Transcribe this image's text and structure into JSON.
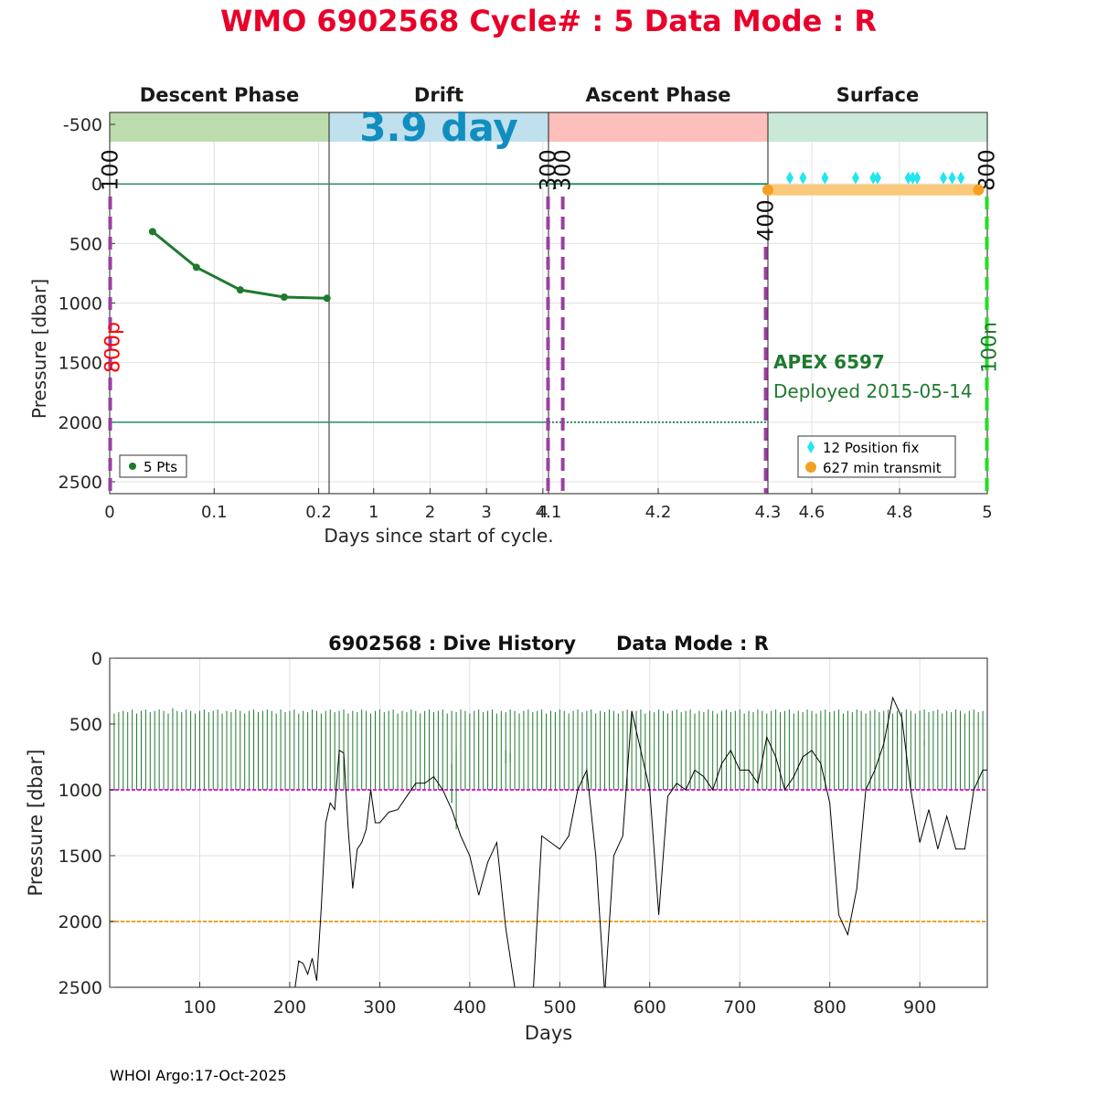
{
  "header": {
    "title": "WMO 6902568   Cycle# : 5   Data Mode : R",
    "title_color": "#e8002a",
    "footer": "WHOI Argo:17-Oct-2025"
  },
  "chart_data": [
    {
      "type": "line",
      "title": "",
      "ylabel": "Pressure [dbar]",
      "xlabel": "Days since start of cycle.",
      "ylim": [
        2600,
        -600
      ],
      "yticks": [
        2500,
        2000,
        1500,
        1000,
        500,
        0,
        -500
      ],
      "ytick_labels": [
        "2500",
        "2000",
        "1500",
        "1000",
        "500",
        "0",
        "-500"
      ],
      "grid": true,
      "phases": [
        {
          "name": "Descent Phase",
          "color": "#bddcae",
          "xlim": [
            0,
            0.21
          ],
          "xticks": [
            0,
            0.1,
            0.2
          ],
          "xtick_labels": [
            "0",
            "0.1",
            "0.2"
          ]
        },
        {
          "name": "Drift",
          "color": "#bfe0ec",
          "duration_label": "3.9 day",
          "xlim": [
            0.21,
            4.1
          ],
          "xticks": [
            1,
            2,
            3,
            4
          ],
          "xtick_labels": [
            "1",
            "2",
            "3",
            "4"
          ]
        },
        {
          "name": "Ascent Phase",
          "color": "#fcbfbb",
          "xlim": [
            4.1,
            4.3
          ],
          "xticks": [
            4.1,
            4.2,
            4.3
          ],
          "xtick_labels": [
            "4.1",
            "4.2",
            "4.3"
          ]
        },
        {
          "name": "Surface",
          "color": "#c9e8d8",
          "xlim": [
            4.5,
            5.0
          ],
          "xticks": [
            4.6,
            4.8,
            5.0
          ],
          "xtick_labels": [
            "4.6",
            "4.8",
            "5"
          ]
        }
      ],
      "phase_duration_color": "#118ec0",
      "reference_lines": [
        {
          "y": 0,
          "color": "#2e8b6e"
        },
        {
          "y": 2000,
          "color": "#2e8b6e"
        }
      ],
      "descent_profile": {
        "legend": "5 Pts",
        "color": "#1f7a2e",
        "x": [
          0.041,
          0.083,
          0.125,
          0.167,
          0.208
        ],
        "y": [
          400,
          700,
          890,
          950,
          960
        ]
      },
      "vertical_markers": [
        {
          "phase": 0,
          "x": 0.0,
          "label": "100",
          "color": "#9a3fa0"
        },
        {
          "phase": 0,
          "x": 0.0,
          "label": "800p",
          "color": "#ff0000",
          "side_label": true
        },
        {
          "phase": 1,
          "x": 4.1,
          "label": "300",
          "color": "#9a3fa0"
        },
        {
          "phase": 2,
          "x": 4.113,
          "label": "300",
          "color": "#9a3fa0"
        },
        {
          "phase": 2,
          "x": 4.298,
          "label": "400",
          "color": "#9a3fa0"
        },
        {
          "phase": 3,
          "x": 5.0,
          "label": "800",
          "color": "#22dd22"
        },
        {
          "phase": 3,
          "x": 5.0,
          "label": "100n",
          "color": "#1f7a2e",
          "side_label": true
        }
      ],
      "surface": {
        "float_name": "APEX 6597",
        "deployed": "Deployed 2015-05-14",
        "label_color": "#1f7a2e",
        "transmit_band": {
          "x_start": 4.5,
          "x_end": 4.98,
          "y": 50,
          "color": "#fbc97a"
        },
        "position_fixes": {
          "legend": "12 Position fix",
          "color": "#22e5f0",
          "x": [
            4.55,
            4.58,
            4.63,
            4.7,
            4.74,
            4.75,
            4.82,
            4.83,
            4.84,
            4.9,
            4.92,
            4.94
          ],
          "y": -50
        },
        "transmit": {
          "legend": "627 min transmit",
          "color": "#f5a020",
          "x": [
            4.5,
            4.98
          ],
          "y": 50
        }
      }
    },
    {
      "type": "line",
      "title": "6902568 : Dive History      Data Mode : R",
      "xlabel": "Days",
      "ylabel": "Pressure [dbar]",
      "xlim": [
        0,
        975
      ],
      "ylim": [
        2500,
        0
      ],
      "xticks": [
        100,
        200,
        300,
        400,
        500,
        600,
        700,
        800,
        900
      ],
      "xtick_labels": [
        "100",
        "200",
        "300",
        "400",
        "500",
        "600",
        "700",
        "800",
        "900"
      ],
      "yticks": [
        0,
        500,
        1000,
        1500,
        2000,
        2500
      ],
      "ytick_labels": [
        "0",
        "500",
        "1000",
        "1500",
        "2000",
        "2500"
      ],
      "grid": true,
      "reference_lines": [
        {
          "y": 1000,
          "color": "#e020e0",
          "style": "dashed"
        },
        {
          "y": 2000,
          "color": "#f5a020",
          "style": "dashed"
        }
      ],
      "series": [
        {
          "kind": "profile_range_bars",
          "color": "#1f7a2e",
          "step": 5,
          "top": [
            420,
            410,
            400,
            410,
            390,
            420,
            400,
            390,
            410,
            400,
            390,
            400,
            420,
            380,
            400,
            410,
            390,
            400,
            420,
            400,
            390,
            410,
            400,
            390,
            420,
            400,
            410,
            390,
            400,
            420,
            400,
            390,
            410,
            400,
            390,
            400,
            420,
            390,
            410,
            400,
            390,
            420,
            400,
            410,
            390,
            400,
            420,
            400,
            390,
            410,
            400,
            390,
            420,
            400,
            410,
            390,
            400,
            420,
            400,
            390,
            410,
            400,
            390,
            420,
            400,
            410,
            390,
            400,
            420,
            400,
            390,
            410,
            400,
            390,
            420,
            400,
            410,
            390,
            400,
            420,
            400,
            390,
            410,
            400,
            390,
            420,
            400,
            410,
            390,
            400,
            420,
            400,
            390,
            410,
            400,
            390,
            420,
            400,
            410,
            390,
            400,
            420,
            400,
            390,
            410,
            400,
            390,
            420,
            400,
            410,
            390,
            400,
            420,
            400,
            390,
            410,
            400,
            390,
            420,
            400,
            410,
            390,
            400,
            420,
            400,
            390,
            410,
            400,
            390,
            420,
            400,
            410,
            390,
            400,
            420,
            400,
            390,
            410,
            400,
            390,
            420,
            400,
            410,
            390,
            400,
            420,
            400,
            390,
            410,
            400,
            390,
            420,
            400,
            410,
            390,
            400,
            420,
            400,
            390,
            410,
            400,
            390,
            420,
            400,
            410,
            390,
            400,
            420,
            400,
            390,
            410,
            400,
            390,
            420,
            400,
            410,
            390,
            400,
            420,
            400,
            390,
            410,
            400,
            390,
            420,
            400,
            410,
            390,
            400,
            420,
            400,
            390,
            410,
            400,
            390,
            420,
            400,
            410,
            390,
            400,
            420,
            400,
            390
          ],
          "bottom": [
            1000,
            1000,
            1000,
            1000,
            1000,
            1000,
            1000,
            1000,
            1000,
            1000,
            1000,
            1000,
            1000,
            1000,
            1000,
            1000,
            1000,
            1000,
            1000,
            1000,
            1000,
            1000,
            1000,
            1000,
            1000,
            1000,
            1000,
            1000,
            1000,
            1000,
            1000,
            1000,
            1000,
            1000,
            1000,
            1000,
            1000,
            1000,
            1000,
            1000,
            1000,
            1000,
            1000,
            1000,
            1000,
            1000,
            1000,
            1000,
            1000,
            1000,
            1000,
            1000,
            1000,
            1000,
            1000,
            1000,
            1000,
            1000,
            1000,
            1000,
            1000,
            1000,
            1000,
            1000,
            1000,
            1000,
            1000,
            1000,
            1000,
            1000,
            1000,
            1000,
            1000,
            1000,
            1000,
            1100,
            1000,
            1000,
            1000,
            1000,
            1000,
            1000,
            1000,
            1000,
            1000,
            1000,
            1000,
            1000,
            1000,
            1000,
            1000,
            1000,
            1000,
            1000,
            1000,
            1000,
            1000,
            1000,
            1000,
            1000,
            1000,
            1000,
            1000,
            1000,
            1000,
            1000,
            1000,
            1000,
            1000,
            1000,
            1000,
            1000,
            1000,
            1000,
            1000,
            1000,
            1000,
            1000,
            1000,
            1000,
            1000,
            1000,
            1000,
            1000,
            1000,
            1000,
            1000,
            1000,
            1000,
            1000,
            1000,
            1000,
            1000,
            1000,
            1000,
            1000,
            1000,
            1000,
            1000,
            1000,
            1000,
            1000,
            1000,
            1000,
            1000,
            1000,
            1000,
            1000,
            1000,
            1000,
            1000,
            1000,
            1000,
            1000,
            1000,
            1000,
            1000,
            1000,
            1000,
            1000,
            1000,
            1000,
            1000,
            1000,
            1000,
            1000,
            1000,
            1000,
            1000,
            1000,
            1000,
            1000,
            1000,
            1000,
            1000,
            1000,
            1000,
            1000,
            1000,
            1000,
            1000,
            1000,
            1000,
            1000,
            1000,
            1000,
            1000,
            1000,
            1000,
            1000,
            1000,
            1000,
            1000,
            1000,
            1000,
            1000,
            1000,
            1000,
            1000,
            1000,
            1000,
            1000,
            1000,
            1000
          ]
        },
        {
          "kind": "max_depth_line",
          "color": "#000000",
          "x": [
            5,
            200,
            205,
            210,
            215,
            220,
            225,
            230,
            235,
            240,
            245,
            250,
            255,
            260,
            265,
            270,
            275,
            280,
            285,
            290,
            295,
            300,
            310,
            320,
            330,
            340,
            350,
            360,
            370,
            380,
            390,
            400,
            410,
            420,
            430,
            440,
            450,
            460,
            470,
            480,
            490,
            500,
            510,
            520,
            530,
            540,
            550,
            560,
            570,
            580,
            590,
            600,
            610,
            620,
            630,
            640,
            650,
            660,
            670,
            680,
            690,
            700,
            710,
            720,
            730,
            740,
            750,
            760,
            770,
            780,
            790,
            800,
            810,
            820,
            830,
            840,
            850,
            860,
            870,
            880,
            890,
            900,
            910,
            920,
            930,
            940,
            950,
            960,
            970,
            975
          ],
          "y": [
            2600,
            2600,
            2550,
            2300,
            2320,
            2400,
            2280,
            2450,
            1900,
            1250,
            1100,
            1150,
            700,
            720,
            1300,
            1750,
            1450,
            1400,
            1300,
            1000,
            1250,
            1250,
            1170,
            1150,
            1050,
            950,
            950,
            900,
            1000,
            1150,
            1350,
            1500,
            1800,
            1550,
            1400,
            2050,
            2500,
            2550,
            2600,
            1350,
            1400,
            1450,
            1350,
            1000,
            850,
            1500,
            2550,
            1500,
            1350,
            400,
            700,
            1000,
            1950,
            1050,
            950,
            1000,
            850,
            900,
            1000,
            800,
            700,
            850,
            850,
            950,
            600,
            750,
            1000,
            900,
            750,
            700,
            800,
            1100,
            1950,
            2100,
            1750,
            1000,
            850,
            650,
            300,
            450,
            1000,
            1400,
            1150,
            1450,
            1200,
            1450,
            1450,
            1000,
            850,
            850
          ]
        },
        {
          "kind": "drift_pressure_ticks",
          "color": "#1f7a2e",
          "x": [
            380,
            385,
            440,
            445,
            875,
            880,
            905,
            910
          ],
          "y_top": [
            800,
            700,
            700,
            720,
            550,
            600,
            620,
            640
          ],
          "y_bottom": [
            1100,
            1300,
            800,
            790,
            580,
            640,
            660,
            680
          ]
        }
      ]
    }
  ]
}
